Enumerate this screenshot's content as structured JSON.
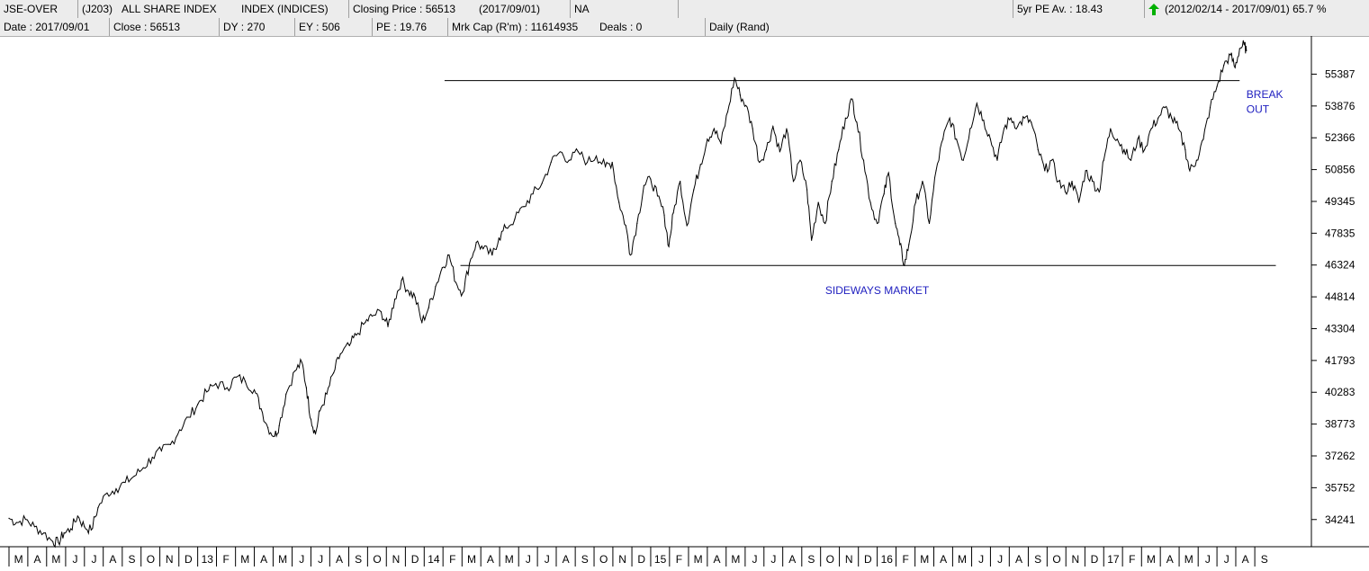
{
  "header": {
    "row1": {
      "code": "JSE-OVER",
      "share_code": "(J203)",
      "name": "ALL SHARE INDEX",
      "sector": "INDEX (INDICES)",
      "closing_price": "Closing Price : 56513",
      "closing_date": "(2017/09/01)",
      "na": "NA",
      "blank": "",
      "pe_avg": "5yr PE Av. : 18.43",
      "period": "(2012/02/14 - 2017/09/01)",
      "change": "65.7 %"
    },
    "row2": {
      "date": "Date : 2017/09/01",
      "close": "Close : 56513",
      "dy": "DY : 270",
      "ey": "EY : 506",
      "pe": "PE : 19.76",
      "mktcap": "Mrk Cap (R'm) : 11614935",
      "deals": "Deals : 0",
      "mode": "Daily (Rand)"
    },
    "colors": {
      "up_arrow": "#00b000",
      "annotation": "#2020c0"
    }
  },
  "chart_data": {
    "type": "line",
    "y_ticks": [
      55387,
      53876,
      52366,
      50856,
      49345,
      47835,
      46324,
      44814,
      43304,
      41793,
      40283,
      38773,
      37262,
      35752,
      34241
    ],
    "ylim": [
      32950,
      57200
    ],
    "x_range": [
      2012.167,
      2017.75
    ],
    "x_ticks": [
      {
        "label": "M",
        "x": 2012.167
      },
      {
        "label": "A",
        "x": 2012.25
      },
      {
        "label": "M",
        "x": 2012.333
      },
      {
        "label": "J",
        "x": 2012.417
      },
      {
        "label": "J",
        "x": 2012.5
      },
      {
        "label": "A",
        "x": 2012.583
      },
      {
        "label": "S",
        "x": 2012.667
      },
      {
        "label": "O",
        "x": 2012.75
      },
      {
        "label": "N",
        "x": 2012.833
      },
      {
        "label": "D",
        "x": 2012.917
      },
      {
        "label": "13",
        "x": 2013.0
      },
      {
        "label": "F",
        "x": 2013.083
      },
      {
        "label": "M",
        "x": 2013.167
      },
      {
        "label": "A",
        "x": 2013.25
      },
      {
        "label": "M",
        "x": 2013.333
      },
      {
        "label": "J",
        "x": 2013.417
      },
      {
        "label": "J",
        "x": 2013.5
      },
      {
        "label": "A",
        "x": 2013.583
      },
      {
        "label": "S",
        "x": 2013.667
      },
      {
        "label": "O",
        "x": 2013.75
      },
      {
        "label": "N",
        "x": 2013.833
      },
      {
        "label": "D",
        "x": 2013.917
      },
      {
        "label": "14",
        "x": 2014.0
      },
      {
        "label": "F",
        "x": 2014.083
      },
      {
        "label": "M",
        "x": 2014.167
      },
      {
        "label": "A",
        "x": 2014.25
      },
      {
        "label": "M",
        "x": 2014.333
      },
      {
        "label": "J",
        "x": 2014.417
      },
      {
        "label": "J",
        "x": 2014.5
      },
      {
        "label": "A",
        "x": 2014.583
      },
      {
        "label": "S",
        "x": 2014.667
      },
      {
        "label": "O",
        "x": 2014.75
      },
      {
        "label": "N",
        "x": 2014.833
      },
      {
        "label": "D",
        "x": 2014.917
      },
      {
        "label": "15",
        "x": 2015.0
      },
      {
        "label": "F",
        "x": 2015.083
      },
      {
        "label": "M",
        "x": 2015.167
      },
      {
        "label": "A",
        "x": 2015.25
      },
      {
        "label": "M",
        "x": 2015.333
      },
      {
        "label": "J",
        "x": 2015.417
      },
      {
        "label": "J",
        "x": 2015.5
      },
      {
        "label": "A",
        "x": 2015.583
      },
      {
        "label": "S",
        "x": 2015.667
      },
      {
        "label": "O",
        "x": 2015.75
      },
      {
        "label": "N",
        "x": 2015.833
      },
      {
        "label": "D",
        "x": 2015.917
      },
      {
        "label": "16",
        "x": 2016.0
      },
      {
        "label": "F",
        "x": 2016.083
      },
      {
        "label": "M",
        "x": 2016.167
      },
      {
        "label": "A",
        "x": 2016.25
      },
      {
        "label": "M",
        "x": 2016.333
      },
      {
        "label": "J",
        "x": 2016.417
      },
      {
        "label": "J",
        "x": 2016.5
      },
      {
        "label": "A",
        "x": 2016.583
      },
      {
        "label": "S",
        "x": 2016.667
      },
      {
        "label": "O",
        "x": 2016.75
      },
      {
        "label": "N",
        "x": 2016.833
      },
      {
        "label": "D",
        "x": 2016.917
      },
      {
        "label": "17",
        "x": 2017.0
      },
      {
        "label": "F",
        "x": 2017.083
      },
      {
        "label": "M",
        "x": 2017.167
      },
      {
        "label": "A",
        "x": 2017.25
      },
      {
        "label": "M",
        "x": 2017.333
      },
      {
        "label": "J",
        "x": 2017.417
      },
      {
        "label": "J",
        "x": 2017.5
      },
      {
        "label": "A",
        "x": 2017.583
      },
      {
        "label": "S",
        "x": 2017.667
      }
    ],
    "series": [
      {
        "values": [
          [
            2012.167,
            34300
          ],
          [
            2012.2,
            34100
          ],
          [
            2012.24,
            34250
          ],
          [
            2012.28,
            33900
          ],
          [
            2012.32,
            33600
          ],
          [
            2012.36,
            33200
          ],
          [
            2012.385,
            33150
          ],
          [
            2012.41,
            33600
          ],
          [
            2012.44,
            33800
          ],
          [
            2012.47,
            34400
          ],
          [
            2012.5,
            33900
          ],
          [
            2012.53,
            33750
          ],
          [
            2012.56,
            34800
          ],
          [
            2012.6,
            35500
          ],
          [
            2012.64,
            35700
          ],
          [
            2012.68,
            36000
          ],
          [
            2012.72,
            36300
          ],
          [
            2012.76,
            36700
          ],
          [
            2012.8,
            37200
          ],
          [
            2012.84,
            37500
          ],
          [
            2012.88,
            37800
          ],
          [
            2012.92,
            38500
          ],
          [
            2012.96,
            39100
          ],
          [
            2013.0,
            39700
          ],
          [
            2013.04,
            40300
          ],
          [
            2013.08,
            40700
          ],
          [
            2013.13,
            40500
          ],
          [
            2013.17,
            41000
          ],
          [
            2013.21,
            40800
          ],
          [
            2013.25,
            40400
          ],
          [
            2013.28,
            39500
          ],
          [
            2013.31,
            38600
          ],
          [
            2013.34,
            38200
          ],
          [
            2013.36,
            38700
          ],
          [
            2013.39,
            40200
          ],
          [
            2013.43,
            41300
          ],
          [
            2013.46,
            41700
          ],
          [
            2013.48,
            40500
          ],
          [
            2013.5,
            39000
          ],
          [
            2013.52,
            38300
          ],
          [
            2013.54,
            39400
          ],
          [
            2013.57,
            40200
          ],
          [
            2013.6,
            41200
          ],
          [
            2013.63,
            42100
          ],
          [
            2013.67,
            42500
          ],
          [
            2013.7,
            43000
          ],
          [
            2013.74,
            43600
          ],
          [
            2013.77,
            43900
          ],
          [
            2013.81,
            44100
          ],
          [
            2013.84,
            43400
          ],
          [
            2013.87,
            44700
          ],
          [
            2013.9,
            45600
          ],
          [
            2013.93,
            45100
          ],
          [
            2013.96,
            44800
          ],
          [
            2013.99,
            43600
          ],
          [
            2014.02,
            44300
          ],
          [
            2014.05,
            45300
          ],
          [
            2014.08,
            46200
          ],
          [
            2014.11,
            46800
          ],
          [
            2014.14,
            45500
          ],
          [
            2014.17,
            45000
          ],
          [
            2014.2,
            46400
          ],
          [
            2014.23,
            47400
          ],
          [
            2014.26,
            47100
          ],
          [
            2014.3,
            46800
          ],
          [
            2014.33,
            47600
          ],
          [
            2014.36,
            48100
          ],
          [
            2014.4,
            48500
          ],
          [
            2014.44,
            49100
          ],
          [
            2014.48,
            49700
          ],
          [
            2014.52,
            50200
          ],
          [
            2014.56,
            51200
          ],
          [
            2014.6,
            51700
          ],
          [
            2014.64,
            51300
          ],
          [
            2014.68,
            51700
          ],
          [
            2014.72,
            51200
          ],
          [
            2014.76,
            51500
          ],
          [
            2014.8,
            51000
          ],
          [
            2014.83,
            51200
          ],
          [
            2014.86,
            49300
          ],
          [
            2014.89,
            48200
          ],
          [
            2014.91,
            46800
          ],
          [
            2014.94,
            48300
          ],
          [
            2014.97,
            50100
          ],
          [
            2015.0,
            50400
          ],
          [
            2015.03,
            49600
          ],
          [
            2015.06,
            48700
          ],
          [
            2015.08,
            47200
          ],
          [
            2015.1,
            48800
          ],
          [
            2015.13,
            50300
          ],
          [
            2015.16,
            48200
          ],
          [
            2015.19,
            49900
          ],
          [
            2015.22,
            51100
          ],
          [
            2015.25,
            52300
          ],
          [
            2015.28,
            52800
          ],
          [
            2015.31,
            52100
          ],
          [
            2015.34,
            53600
          ],
          [
            2015.37,
            55200
          ],
          [
            2015.395,
            54400
          ],
          [
            2015.42,
            53900
          ],
          [
            2015.45,
            52800
          ],
          [
            2015.48,
            51200
          ],
          [
            2015.51,
            51800
          ],
          [
            2015.54,
            52900
          ],
          [
            2015.57,
            51700
          ],
          [
            2015.6,
            52800
          ],
          [
            2015.63,
            50300
          ],
          [
            2015.66,
            51300
          ],
          [
            2015.69,
            49900
          ],
          [
            2015.71,
            47500
          ],
          [
            2015.74,
            49300
          ],
          [
            2015.77,
            48300
          ],
          [
            2015.8,
            50300
          ],
          [
            2015.83,
            51800
          ],
          [
            2015.86,
            53300
          ],
          [
            2015.89,
            54200
          ],
          [
            2015.91,
            53100
          ],
          [
            2015.94,
            51300
          ],
          [
            2015.97,
            49300
          ],
          [
            2016.0,
            48300
          ],
          [
            2016.03,
            49700
          ],
          [
            2016.05,
            50700
          ],
          [
            2016.08,
            48300
          ],
          [
            2016.1,
            47300
          ],
          [
            2016.12,
            46300
          ],
          [
            2016.14,
            47300
          ],
          [
            2016.17,
            49300
          ],
          [
            2016.2,
            50300
          ],
          [
            2016.23,
            48300
          ],
          [
            2016.26,
            50800
          ],
          [
            2016.29,
            52300
          ],
          [
            2016.32,
            53300
          ],
          [
            2016.35,
            52300
          ],
          [
            2016.38,
            51300
          ],
          [
            2016.41,
            52800
          ],
          [
            2016.44,
            54000
          ],
          [
            2016.47,
            53200
          ],
          [
            2016.5,
            52300
          ],
          [
            2016.53,
            51300
          ],
          [
            2016.56,
            52800
          ],
          [
            2016.59,
            53300
          ],
          [
            2016.62,
            52900
          ],
          [
            2016.65,
            53300
          ],
          [
            2016.68,
            53100
          ],
          [
            2016.71,
            51800
          ],
          [
            2016.74,
            50800
          ],
          [
            2016.77,
            51300
          ],
          [
            2016.8,
            50300
          ],
          [
            2016.83,
            49800
          ],
          [
            2016.86,
            50300
          ],
          [
            2016.89,
            49300
          ],
          [
            2016.92,
            50800
          ],
          [
            2016.95,
            50300
          ],
          [
            2016.98,
            49800
          ],
          [
            2017.0,
            51300
          ],
          [
            2017.03,
            52800
          ],
          [
            2017.06,
            52300
          ],
          [
            2017.09,
            51800
          ],
          [
            2017.12,
            51300
          ],
          [
            2017.15,
            52300
          ],
          [
            2017.18,
            51800
          ],
          [
            2017.21,
            52800
          ],
          [
            2017.24,
            53300
          ],
          [
            2017.27,
            53800
          ],
          [
            2017.3,
            53300
          ],
          [
            2017.33,
            52800
          ],
          [
            2017.36,
            51800
          ],
          [
            2017.38,
            50800
          ],
          [
            2017.41,
            51300
          ],
          [
            2017.44,
            52300
          ],
          [
            2017.47,
            53800
          ],
          [
            2017.5,
            54800
          ],
          [
            2017.53,
            55800
          ],
          [
            2017.56,
            56300
          ],
          [
            2017.58,
            55700
          ],
          [
            2017.6,
            56600
          ],
          [
            2017.62,
            56800
          ],
          [
            2017.63,
            56500
          ]
        ]
      }
    ],
    "lines": [
      {
        "name": "resistance",
        "x": [
          2014.09,
          2017.6
        ],
        "y": 55080
      },
      {
        "name": "support",
        "x": [
          2014.16,
          2017.76
        ],
        "y": 46300
      }
    ],
    "annotations": [
      {
        "text": "SIDEWAYS MARKET",
        "x": 2016.0,
        "y": 44950
      },
      {
        "text": "BREAK",
        "x": 2017.63,
        "y": 54250
      },
      {
        "text": "OUT",
        "x": 2017.63,
        "y": 53550
      }
    ]
  }
}
